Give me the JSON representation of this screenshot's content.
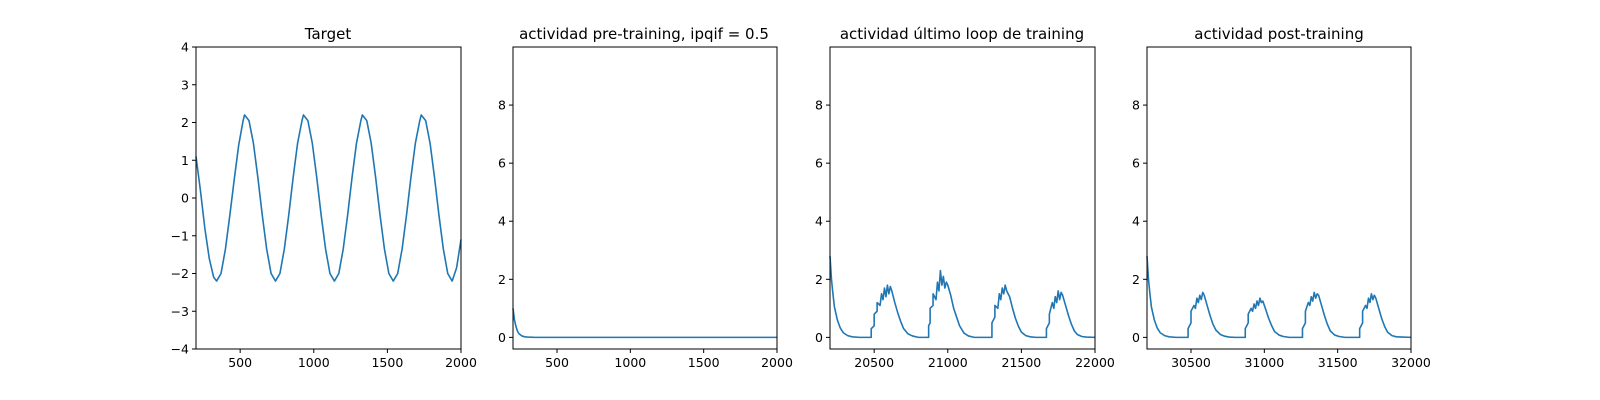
{
  "line_color": "#1f77b4",
  "chart_data": [
    {
      "type": "line",
      "title": "Target",
      "xlim": [
        200,
        2000
      ],
      "ylim": [
        -4,
        4
      ],
      "xticks": [
        500,
        1000,
        1500,
        2000
      ],
      "yticks": [
        -4,
        -3,
        -2,
        -1,
        0,
        1,
        2,
        3,
        4
      ],
      "yticklabels": [
        "−4",
        "−3",
        "−2",
        "−1",
        "0",
        "1",
        "2",
        "3",
        "4"
      ],
      "grid": false,
      "series": [
        {
          "x": [
            200,
            230,
            260,
            290,
            320,
            340,
            370,
            400,
            430,
            460,
            490,
            520,
            530,
            560,
            590,
            620,
            650,
            680,
            710,
            740,
            770,
            800,
            830,
            860,
            890,
            920,
            930,
            960,
            990,
            1020,
            1050,
            1080,
            1110,
            1140,
            1170,
            1200,
            1230,
            1260,
            1290,
            1320,
            1330,
            1360,
            1390,
            1420,
            1450,
            1480,
            1510,
            1540,
            1570,
            1600,
            1630,
            1660,
            1690,
            1720,
            1730,
            1760,
            1790,
            1820,
            1850,
            1880,
            1910,
            1940,
            1970,
            2000
          ],
          "y": [
            1.1,
            0.2,
            -0.8,
            -1.6,
            -2.1,
            -2.2,
            -2.0,
            -1.35,
            -0.45,
            0.5,
            1.4,
            2.05,
            2.2,
            2.05,
            1.45,
            0.55,
            -0.45,
            -1.35,
            -2.0,
            -2.2,
            -2.0,
            -1.35,
            -0.45,
            0.55,
            1.45,
            2.05,
            2.2,
            2.05,
            1.45,
            0.55,
            -0.45,
            -1.35,
            -2.0,
            -2.2,
            -2.0,
            -1.35,
            -0.45,
            0.55,
            1.45,
            2.05,
            2.2,
            2.05,
            1.45,
            0.55,
            -0.45,
            -1.35,
            -2.0,
            -2.2,
            -2.0,
            -1.35,
            -0.45,
            0.55,
            1.45,
            2.05,
            2.2,
            2.05,
            1.45,
            0.55,
            -0.45,
            -1.35,
            -2.0,
            -2.2,
            -1.85,
            -1.1
          ]
        }
      ]
    },
    {
      "type": "line",
      "title": "actividad pre-training, ipqif = 0.5",
      "xlim": [
        200,
        2000
      ],
      "ylim": [
        -0.4,
        10
      ],
      "xticks": [
        500,
        1000,
        1500,
        2000
      ],
      "yticks": [
        0,
        2,
        4,
        6,
        8
      ],
      "grid": false,
      "series": [
        {
          "x": [
            200,
            205,
            210,
            220,
            230,
            240,
            260,
            280,
            300,
            350,
            400,
            2000
          ],
          "y": [
            1.0,
            0.8,
            0.6,
            0.38,
            0.22,
            0.13,
            0.05,
            0.02,
            0.01,
            0.0,
            0.0,
            0.0
          ]
        }
      ]
    },
    {
      "type": "line",
      "title": "actividad último loop de training",
      "xlim": [
        20200,
        22000
      ],
      "ylim": [
        -0.4,
        10
      ],
      "xticks": [
        20500,
        21000,
        21500,
        22000
      ],
      "yticks": [
        0,
        2,
        4,
        6,
        8
      ],
      "grid": false,
      "series": [
        {
          "x": [
            20200,
            20210,
            20220,
            20230,
            20250,
            20270,
            20290,
            20320,
            20350,
            20400,
            20480,
            20480,
            20500,
            20500,
            20520,
            20520,
            20540,
            20550,
            20560,
            20570,
            20580,
            20590,
            20600,
            20610,
            20620,
            20640,
            20660,
            20680,
            20700,
            20730,
            20760,
            20800,
            20870,
            20870,
            20880,
            20880,
            20900,
            20900,
            20920,
            20930,
            20940,
            20950,
            20960,
            20970,
            20980,
            20990,
            21000,
            21020,
            21040,
            21060,
            21080,
            21110,
            21140,
            21180,
            21250,
            21300,
            21300,
            21320,
            21320,
            21340,
            21350,
            21360,
            21370,
            21380,
            21390,
            21400,
            21420,
            21440,
            21460,
            21480,
            21500,
            21530,
            21560,
            21600,
            21670,
            21670,
            21690,
            21690,
            21710,
            21720,
            21730,
            21740,
            21750,
            21760,
            21770,
            21780,
            21800,
            21820,
            21840,
            21860,
            21880,
            21910,
            21940,
            22000
          ],
          "y": [
            2.8,
            2.0,
            1.5,
            1.05,
            0.6,
            0.32,
            0.16,
            0.06,
            0.02,
            0.0,
            0.0,
            0.3,
            0.4,
            0.8,
            0.9,
            1.2,
            1.1,
            1.5,
            1.3,
            1.7,
            1.4,
            1.8,
            1.5,
            1.75,
            1.6,
            1.2,
            0.85,
            0.55,
            0.3,
            0.12,
            0.05,
            0.0,
            0.0,
            0.4,
            0.5,
            1.0,
            1.1,
            1.5,
            1.3,
            1.9,
            1.6,
            2.3,
            1.8,
            2.1,
            1.7,
            1.9,
            1.8,
            1.45,
            1.0,
            0.7,
            0.4,
            0.15,
            0.05,
            0.0,
            0.0,
            0.0,
            0.5,
            0.7,
            1.1,
            1.0,
            1.5,
            1.3,
            1.7,
            1.5,
            1.8,
            1.6,
            1.4,
            1.0,
            0.65,
            0.38,
            0.18,
            0.06,
            0.02,
            0.0,
            0.0,
            0.3,
            0.5,
            0.8,
            1.2,
            1.0,
            1.4,
            1.2,
            1.6,
            1.3,
            1.55,
            1.45,
            1.1,
            0.75,
            0.45,
            0.22,
            0.1,
            0.03,
            0.01,
            0.0
          ]
        }
      ]
    },
    {
      "type": "line",
      "title": "actividad post-training",
      "xlim": [
        30200,
        32000
      ],
      "ylim": [
        -0.4,
        10
      ],
      "xticks": [
        30500,
        31000,
        31500,
        32000
      ],
      "yticks": [
        0,
        2,
        4,
        6,
        8
      ],
      "grid": false,
      "series": [
        {
          "x": [
            30200,
            30210,
            30220,
            30230,
            30250,
            30270,
            30290,
            30320,
            30350,
            30400,
            30480,
            30480,
            30500,
            30500,
            30520,
            30530,
            30540,
            30550,
            30560,
            30570,
            30580,
            30590,
            30610,
            30630,
            30650,
            30670,
            30700,
            30730,
            30760,
            30800,
            30870,
            30870,
            30890,
            30890,
            30910,
            30920,
            30930,
            30940,
            30950,
            30960,
            30970,
            30980,
            30990,
            31010,
            31030,
            31050,
            31070,
            31100,
            31130,
            31170,
            31260,
            31260,
            31280,
            31280,
            31300,
            31310,
            31320,
            31330,
            31340,
            31350,
            31360,
            31370,
            31390,
            31410,
            31430,
            31450,
            31480,
            31510,
            31550,
            31650,
            31650,
            31670,
            31670,
            31690,
            31700,
            31710,
            31720,
            31730,
            31740,
            31750,
            31760,
            31780,
            31800,
            31820,
            31840,
            31870,
            31900,
            31940,
            32000
          ],
          "y": [
            2.8,
            2.0,
            1.5,
            1.05,
            0.6,
            0.32,
            0.16,
            0.06,
            0.02,
            0.0,
            0.0,
            0.3,
            0.5,
            0.9,
            1.1,
            1.0,
            1.35,
            1.2,
            1.45,
            1.3,
            1.55,
            1.45,
            1.1,
            0.75,
            0.45,
            0.25,
            0.1,
            0.04,
            0.01,
            0.0,
            0.0,
            0.3,
            0.5,
            0.8,
            1.0,
            0.9,
            1.15,
            1.0,
            1.25,
            1.1,
            1.35,
            1.2,
            1.25,
            0.95,
            0.65,
            0.4,
            0.2,
            0.08,
            0.03,
            0.0,
            0.0,
            0.3,
            0.5,
            0.9,
            1.2,
            1.1,
            1.4,
            1.25,
            1.55,
            1.35,
            1.5,
            1.45,
            1.1,
            0.75,
            0.45,
            0.22,
            0.08,
            0.03,
            0.0,
            0.0,
            0.3,
            0.5,
            0.9,
            1.1,
            1.0,
            1.35,
            1.2,
            1.5,
            1.3,
            1.45,
            1.35,
            1.0,
            0.65,
            0.38,
            0.18,
            0.06,
            0.02,
            0.01,
            0.0
          ]
        }
      ]
    }
  ]
}
